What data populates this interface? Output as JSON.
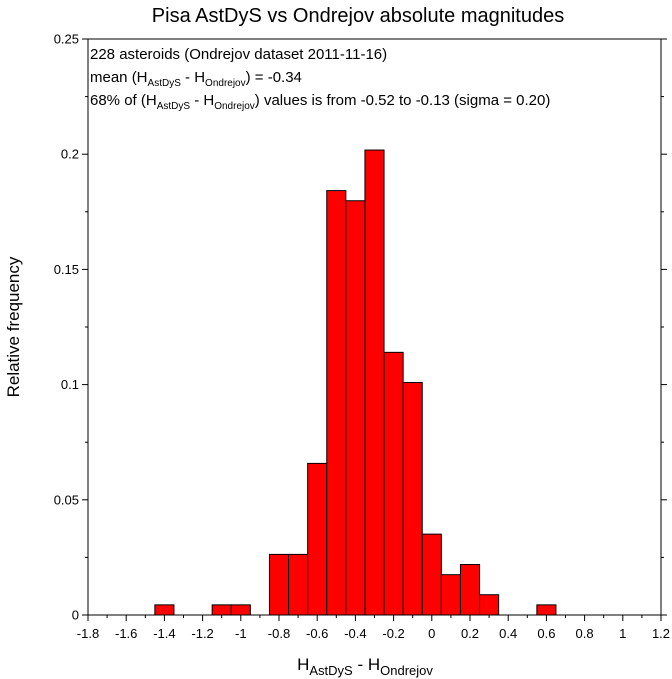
{
  "chart_data": {
    "type": "bar",
    "title": "Pisa AstDyS vs Ondrejov absolute magnitudes",
    "xlabel": {
      "main": "H",
      "sub1": "AstDyS",
      "mid": " - H",
      "sub2": "Ondrejov"
    },
    "ylabel": "Relative frequency",
    "xlim": [
      -1.8,
      1.2
    ],
    "ylim": [
      0,
      0.25
    ],
    "bin_width": 0.1,
    "bin_edges": [
      -1.45,
      -1.15,
      -1.05,
      -0.85,
      -0.75,
      -0.65,
      -0.55,
      -0.45,
      -0.35,
      -0.25,
      -0.15,
      -0.05,
      0.05,
      0.15,
      0.25,
      0.55
    ],
    "values": [
      0.0044,
      0.0044,
      0.0044,
      0.0263,
      0.0263,
      0.0658,
      0.1842,
      0.1798,
      0.2018,
      0.114,
      0.1009,
      0.0351,
      0.0175,
      0.0219,
      0.0088,
      0.0044
    ],
    "x_ticks": [
      "-1.8",
      "-1.6",
      "-1.4",
      "-1.2",
      "-1",
      "-0.8",
      "-0.6",
      "-0.4",
      "-0.2",
      "0",
      "0.2",
      "0.4",
      "0.6",
      "0.8",
      "1",
      "1.2"
    ],
    "x_tick_values": [
      -1.8,
      -1.6,
      -1.4,
      -1.2,
      -1.0,
      -0.8,
      -0.6,
      -0.4,
      -0.2,
      0,
      0.2,
      0.4,
      0.6,
      0.8,
      1.0,
      1.2
    ],
    "y_ticks": [
      "0",
      "0.05",
      "0.1",
      "0.15",
      "0.2",
      "0.25"
    ],
    "y_tick_values": [
      0,
      0.05,
      0.1,
      0.15,
      0.2,
      0.25
    ],
    "bar_color": "#ff0000",
    "annotations": {
      "line1": "228 asteroids (Ondrejov dataset 2011-11-16)",
      "line2": {
        "pre": "mean (H",
        "sub1": "AstDyS",
        "mid": " - H",
        "sub2": "Ondrejov",
        "post": ") = -0.34"
      },
      "line3": {
        "pre": "68% of (H",
        "sub1": "AstDyS",
        "mid": " - H",
        "sub2": "Ondrejov",
        "post": ") values is from -0.52 to -0.13 (sigma = 0.20)"
      }
    }
  }
}
